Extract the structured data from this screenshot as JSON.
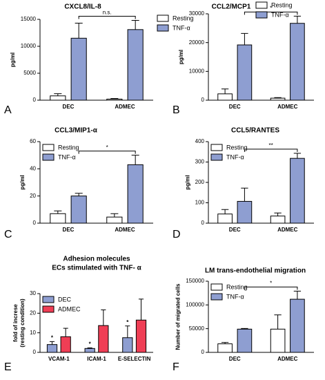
{
  "chart_data": [
    {
      "type": "bar",
      "panel_label": "A",
      "title": "CXCL8/IL-8",
      "ylabel": "pg/ml",
      "categories": [
        "DEC",
        "ADMEC"
      ],
      "series": [
        {
          "name": "Resting",
          "color": "#ffffff",
          "values": [
            800,
            200
          ],
          "errors": [
            400,
            100
          ]
        },
        {
          "name": "TNF-α",
          "color": "#8e9ed1",
          "values": [
            11500,
            13100
          ],
          "errors": [
            2800,
            1700
          ]
        }
      ],
      "ylim": [
        0,
        15000
      ],
      "yticks": [
        0,
        5000,
        10000,
        15000
      ],
      "legend": "outside-right",
      "significance": "n.s."
    },
    {
      "type": "bar",
      "panel_label": "B",
      "title": "CCL2/MCP1",
      "ylabel": "pg/ml",
      "categories": [
        "DEC",
        "ADMEC"
      ],
      "series": [
        {
          "name": "Resting",
          "color": "#ffffff",
          "values": [
            2200,
            700
          ],
          "errors": [
            1700,
            200
          ]
        },
        {
          "name": "TNF-α",
          "color": "#8e9ed1",
          "values": [
            19200,
            26700
          ],
          "errors": [
            4000,
            2500
          ]
        }
      ],
      "ylim": [
        0,
        30000
      ],
      "yticks": [
        0,
        10000,
        20000,
        30000
      ],
      "legend": "top-right",
      "significance": "*"
    },
    {
      "type": "bar",
      "panel_label": "C",
      "title": "CCL3/MIP1-α",
      "ylabel": "pg/ml",
      "categories": [
        "DEC",
        "ADMEC"
      ],
      "series": [
        {
          "name": "Resting",
          "color": "#ffffff",
          "values": [
            7,
            4.5
          ],
          "errors": [
            2,
            2.5
          ]
        },
        {
          "name": "TNF-α",
          "color": "#8e9ed1",
          "values": [
            20,
            43
          ],
          "errors": [
            2,
            7
          ]
        }
      ],
      "ylim": [
        0,
        60
      ],
      "yticks": [
        0,
        20,
        40,
        60
      ],
      "legend": "upper-left",
      "significance": "*"
    },
    {
      "type": "bar",
      "panel_label": "D",
      "title": "CCL5/RANTES",
      "ylabel": "pg/ml",
      "categories": [
        "DEC",
        "ADMEC"
      ],
      "series": [
        {
          "name": "Resting",
          "color": "#ffffff",
          "values": [
            45,
            35
          ],
          "errors": [
            22,
            15
          ]
        },
        {
          "name": "TNF-α",
          "color": "#8e9ed1",
          "values": [
            107,
            318
          ],
          "errors": [
            65,
            25
          ]
        }
      ],
      "ylim": [
        0,
        400
      ],
      "yticks": [
        0,
        100,
        200,
        300,
        400
      ],
      "legend": "upper-left",
      "significance": "**"
    },
    {
      "type": "bar",
      "panel_label": "E",
      "title": [
        "Adhesion molecules",
        "ECs stimulated with TNF- α"
      ],
      "ylabel": [
        "fold of increse",
        "(resting condition)"
      ],
      "categories": [
        "VCAM-1",
        "ICAM-1",
        "E-SELECTIN"
      ],
      "series": [
        {
          "name": "DEC",
          "color": "#8e9ed1",
          "values": [
            4,
            2,
            7.5
          ],
          "errors": [
            1.5,
            0.3,
            6
          ]
        },
        {
          "name": "ADMEC",
          "color": "#ef3e55",
          "values": [
            8,
            13.7,
            16.5
          ],
          "errors": [
            4.3,
            8,
            10.7
          ]
        }
      ],
      "ylim": [
        0,
        30
      ],
      "yticks": [
        0,
        10,
        20,
        30
      ],
      "legend": "upper-left",
      "annotations": [
        "*",
        "*",
        "*"
      ]
    },
    {
      "type": "bar",
      "panel_label": "F",
      "title": "LM trans-endothelial migration",
      "ylabel": "Number of migrated cells",
      "categories": [
        "DEC",
        "ADMEC"
      ],
      "series": [
        {
          "name": "Resting",
          "color": "#ffffff",
          "values": [
            18000,
            49000
          ],
          "errors": [
            3000,
            30000
          ]
        },
        {
          "name": "TNF-α",
          "color": "#8e9ed1",
          "values": [
            49000,
            112000
          ],
          "errors": [
            1500,
            17000
          ]
        }
      ],
      "ylim": [
        0,
        150000
      ],
      "yticks": [
        0,
        50000,
        100000,
        150000
      ],
      "legend": "upper-left",
      "significance": "*"
    }
  ]
}
